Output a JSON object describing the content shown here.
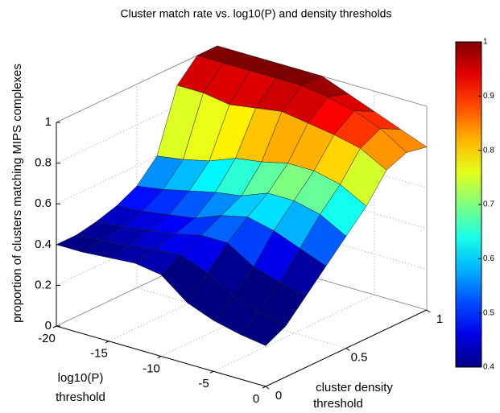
{
  "chart_data": {
    "type": "surface",
    "title": "Cluster match rate vs. log10(P) and density thresholds",
    "xlabel": [
      "log10(P)",
      "threshold"
    ],
    "ylabel": [
      "cluster density",
      "threshold"
    ],
    "zlabel": "proportion of clusters matching MIPS complexes",
    "x": [
      -20,
      -17.5,
      -15,
      -12.5,
      -10,
      -7.5,
      -5,
      -2.5,
      0
    ],
    "y": [
      0,
      0.125,
      0.25,
      0.375,
      0.5,
      0.625,
      0.75,
      0.875,
      1
    ],
    "z": [
      [
        0.4,
        0.4,
        0.42,
        0.45,
        0.5,
        0.6,
        0.9,
        1,
        1
      ],
      [
        0.4,
        0.41,
        0.43,
        0.46,
        0.52,
        0.62,
        0.9,
        1,
        1
      ],
      [
        0.41,
        0.42,
        0.45,
        0.48,
        0.55,
        0.65,
        0.88,
        1,
        1
      ],
      [
        0.42,
        0.44,
        0.47,
        0.5,
        0.58,
        0.7,
        0.9,
        1,
        1
      ],
      [
        0.4,
        0.45,
        0.5,
        0.55,
        0.6,
        0.72,
        0.92,
        1,
        1
      ],
      [
        0.3,
        0.4,
        0.5,
        0.58,
        0.65,
        0.75,
        0.9,
        0.98,
        0.95
      ],
      [
        0.25,
        0.32,
        0.42,
        0.55,
        0.65,
        0.75,
        0.88,
        0.95,
        0.9
      ],
      [
        0.22,
        0.28,
        0.38,
        0.5,
        0.62,
        0.72,
        0.85,
        0.9,
        0.85
      ],
      [
        0.2,
        0.25,
        0.35,
        0.45,
        0.55,
        0.65,
        0.78,
        0.82,
        0.8
      ]
    ],
    "xlim": [
      -20,
      0
    ],
    "xticks": [
      -20,
      -15,
      -10,
      -5,
      0
    ],
    "ylim": [
      0,
      1
    ],
    "yticks": [
      0,
      0.5,
      1
    ],
    "zlim": [
      0,
      1
    ],
    "zticks": [
      0,
      0.2,
      0.4,
      0.6,
      0.8,
      1
    ],
    "clim": [
      0.4,
      1
    ],
    "cticks": [
      0.4,
      0.5,
      0.6,
      0.7,
      0.8,
      0.9,
      1
    ],
    "colormap": "jet",
    "grid": true
  }
}
